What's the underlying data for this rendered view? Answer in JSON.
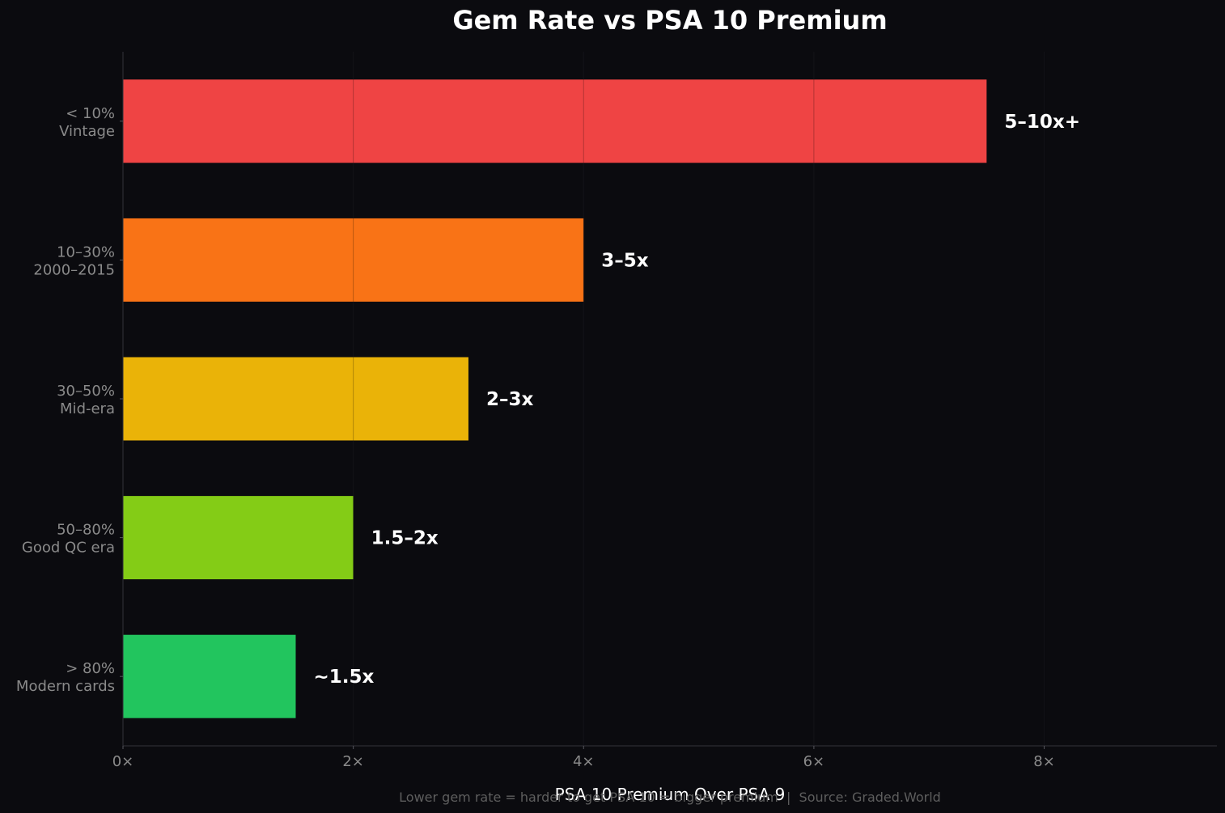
{
  "chart_data": {
    "type": "bar",
    "orientation": "horizontal",
    "title": "Gem Rate vs PSA 10 Premium",
    "xlabel": "PSA 10 Premium Over PSA 9",
    "ylabel": "",
    "footnote": "Lower gem rate = harder to get PSA 10 = bigger premium  |  Source: Graded.World",
    "xlim": [
      0,
      9.5
    ],
    "x_ticks": [
      0,
      2,
      4,
      6,
      8
    ],
    "x_tick_labels": [
      "0×",
      "2×",
      "4×",
      "6×",
      "8×"
    ],
    "grid": "vertical",
    "legend": "none",
    "categories": [
      [
        "< 10%",
        "Vintage"
      ],
      [
        "10–30%",
        "2000–2015"
      ],
      [
        "30–50%",
        "Mid-era"
      ],
      [
        "50–80%",
        "Good QC era"
      ],
      [
        "> 80%",
        "Modern cards"
      ]
    ],
    "values": [
      7.5,
      4,
      3,
      2,
      1.5
    ],
    "bar_labels": [
      "5–10x+",
      "3–5x",
      "2–3x",
      "1.5–2x",
      "~1.5x"
    ],
    "colors": [
      "#ef4444",
      "#f97316",
      "#eab308",
      "#84cc16",
      "#22c55e"
    ],
    "background": "#0b0b0f"
  }
}
